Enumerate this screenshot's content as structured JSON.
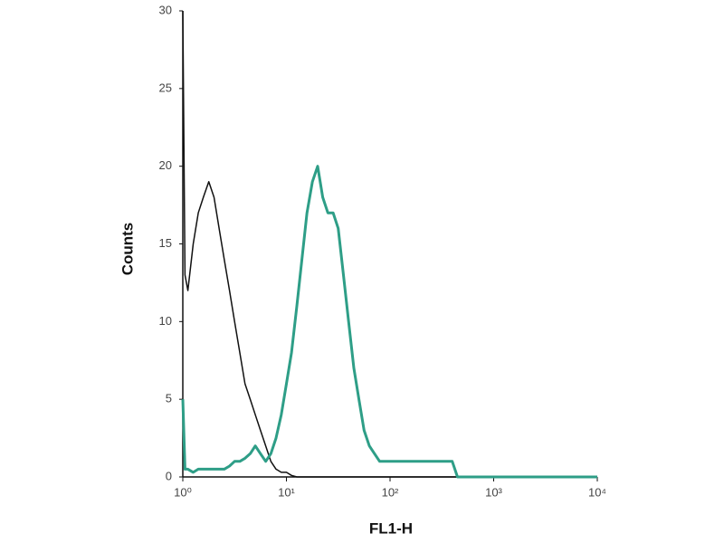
{
  "chart_data": {
    "type": "line",
    "x_label": "FL1-H",
    "y_label": "Counts",
    "log_x": true,
    "xlim": [
      1,
      10000
    ],
    "xticks": [
      {
        "value": 1,
        "label": "10⁰"
      },
      {
        "value": 10,
        "label": "10¹"
      },
      {
        "value": 100,
        "label": "10²"
      },
      {
        "value": 1000,
        "label": "10³"
      },
      {
        "value": 10000,
        "label": "10⁴"
      }
    ],
    "ylim": [
      0,
      30
    ],
    "yticks": [
      0,
      5,
      10,
      15,
      20,
      25,
      30
    ],
    "grid": false,
    "x": [
      1,
      1.05,
      1.12,
      1.26,
      1.41,
      1.58,
      1.78,
      2.0,
      2.24,
      2.51,
      2.82,
      3.16,
      3.55,
      3.98,
      4.47,
      5.01,
      5.62,
      6.31,
      7.08,
      7.94,
      8.91,
      10,
      11.2,
      12.6,
      14.1,
      15.8,
      17.8,
      20,
      22.4,
      25.1,
      28.2,
      31.6,
      35.5,
      39.8,
      44.7,
      50.1,
      56.2,
      63.1,
      70.8,
      79.4,
      89.1,
      100,
      158,
      251,
      398,
      447,
      1000,
      10000
    ],
    "series": [
      {
        "color": "#111111",
        "width": 1.5,
        "values": [
          30,
          13,
          12,
          15,
          17,
          18,
          19,
          18,
          16,
          14,
          12,
          10,
          8,
          6,
          5,
          4,
          3,
          2,
          1,
          0.5,
          0.3,
          0.3,
          0.1,
          0,
          0,
          0,
          0,
          0,
          0,
          0,
          0,
          0,
          0,
          0,
          0,
          0,
          0,
          0,
          0,
          0,
          0,
          0,
          0,
          0,
          0,
          0,
          0,
          0
        ]
      },
      {
        "color": "#2e9e87",
        "width": 3,
        "values": [
          5,
          0.5,
          0.5,
          0.3,
          0.5,
          0.5,
          0.5,
          0.5,
          0.5,
          0.5,
          0.7,
          1,
          1,
          1.2,
          1.5,
          2,
          1.5,
          1,
          1.5,
          2.5,
          4,
          6,
          8,
          11,
          14,
          17,
          19,
          20,
          18,
          17,
          17,
          16,
          13,
          10,
          7,
          5,
          3,
          2,
          1.5,
          1,
          1,
          1,
          1,
          1,
          1,
          0,
          0,
          0
        ]
      }
    ]
  }
}
